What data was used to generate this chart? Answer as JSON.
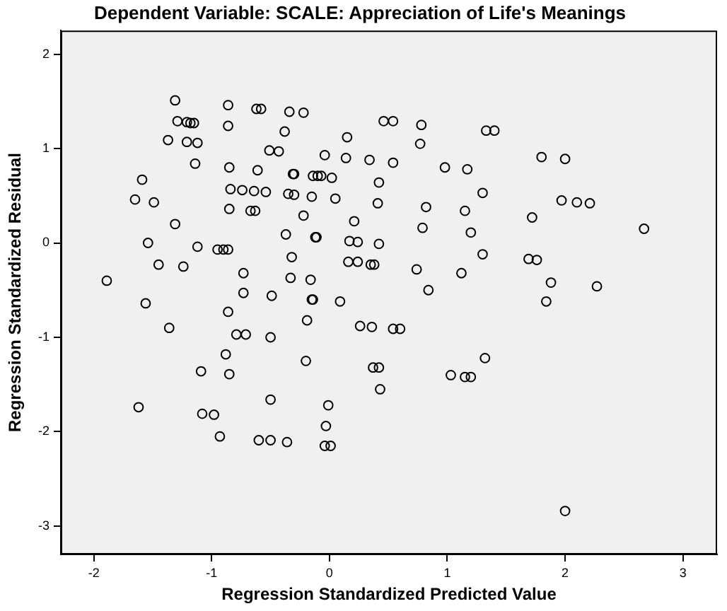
{
  "chart_data": {
    "type": "scatter",
    "title": "Dependent Variable: SCALE: Appreciation of Life's Meanings",
    "xlabel": "Regression Standardized Predicted Value",
    "ylabel": "Regression Standardized Residual",
    "marker": "circle",
    "xlim": [
      -2.28,
      3.29
    ],
    "ylim": [
      -3.3,
      2.25
    ],
    "xticks": [
      -2,
      -1,
      0,
      1,
      2,
      3
    ],
    "yticks": [
      -3,
      -2,
      -1,
      0,
      1,
      2
    ],
    "grid": false,
    "legend": false,
    "series": [
      {
        "color": "#000000",
        "x": [
          -1.31,
          -0.86,
          -0.62,
          -0.58,
          -0.34,
          -0.22,
          0.46,
          0.54,
          -1.29,
          -1.21,
          -1.18,
          -1.15,
          -0.86,
          -0.38,
          0.15,
          -1.37,
          -1.21,
          -1.12,
          -0.51,
          -0.43,
          -0.04,
          0.14,
          0.34,
          0.54,
          -1.14,
          -0.85,
          -0.61,
          -0.31,
          -0.3,
          -0.14,
          -0.1,
          -0.07,
          0.02,
          0.42,
          -1.59,
          -0.84,
          -0.74,
          -0.64,
          -0.54,
          -0.35,
          -0.3,
          -0.15,
          0.05,
          -1.65,
          -1.49,
          0.41,
          -0.85,
          -0.67,
          -0.63,
          -0.22,
          0.21,
          -1.31,
          -0.37,
          -0.12,
          -0.11,
          0.17,
          0.24,
          0.42,
          -1.54,
          -1.12,
          -0.95,
          -0.9,
          -0.86,
          -0.32,
          -1.45,
          -1.24,
          0.16,
          0.24,
          0.35,
          0.38,
          -1.89,
          -0.73,
          -0.33,
          -0.16,
          -0.73,
          -0.49,
          -0.15,
          -0.14,
          0.09,
          -1.56,
          -0.86,
          -1.36,
          -0.79,
          -0.71,
          -0.5,
          -0.19,
          0.26,
          0.36,
          0.54,
          0.6,
          -0.88,
          -1.09,
          -0.85,
          -0.2,
          0.37,
          0.42,
          0.43,
          -0.5,
          -0.01,
          -0.03,
          -0.04,
          0.01,
          -1.62,
          -1.08,
          -0.98,
          -0.93,
          -0.6,
          -0.5,
          -0.36,
          0.78,
          1.33,
          1.4,
          0.77,
          0.98,
          1.17,
          1.8,
          2.0,
          1.3,
          0.82,
          1.15,
          1.72,
          1.97,
          2.1,
          2.21,
          2.67,
          0.79,
          1.2,
          1.3,
          1.69,
          1.76,
          0.74,
          1.12,
          1.88,
          2.27,
          0.84,
          1.84,
          1.32,
          1.03,
          1.15,
          1.2,
          2.0
        ],
        "values": [
          1.51,
          1.46,
          1.42,
          1.42,
          1.39,
          1.38,
          1.29,
          1.29,
          1.29,
          1.28,
          1.27,
          1.27,
          1.24,
          1.18,
          1.12,
          1.09,
          1.07,
          1.06,
          0.98,
          0.97,
          0.93,
          0.9,
          0.88,
          0.85,
          0.84,
          0.8,
          0.77,
          0.73,
          0.73,
          0.71,
          0.71,
          0.71,
          0.69,
          0.64,
          0.67,
          0.57,
          0.56,
          0.55,
          0.54,
          0.52,
          0.51,
          0.49,
          0.47,
          0.46,
          0.43,
          0.42,
          0.36,
          0.34,
          0.34,
          0.29,
          0.23,
          0.2,
          0.09,
          0.06,
          0.06,
          0.02,
          0.01,
          -0.01,
          0.0,
          -0.04,
          -0.07,
          -0.07,
          -0.07,
          -0.15,
          -0.23,
          -0.25,
          -0.2,
          -0.2,
          -0.23,
          -0.23,
          -0.4,
          -0.32,
          -0.37,
          -0.39,
          -0.53,
          -0.56,
          -0.6,
          -0.6,
          -0.62,
          -0.64,
          -0.73,
          -0.9,
          -0.97,
          -0.97,
          -1.0,
          -0.82,
          -0.88,
          -0.89,
          -0.91,
          -0.91,
          -1.18,
          -1.36,
          -1.39,
          -1.25,
          -1.32,
          -1.32,
          -1.55,
          -1.66,
          -1.72,
          -1.94,
          -2.15,
          -2.15,
          -1.74,
          -1.81,
          -1.82,
          -2.05,
          -2.09,
          -2.09,
          -2.11,
          1.25,
          1.19,
          1.19,
          1.05,
          0.8,
          0.78,
          0.91,
          0.89,
          0.53,
          0.38,
          0.34,
          0.27,
          0.45,
          0.43,
          0.42,
          0.15,
          0.16,
          0.11,
          -0.12,
          -0.17,
          -0.18,
          -0.28,
          -0.32,
          -0.42,
          -0.46,
          -0.5,
          -0.62,
          -1.22,
          -1.4,
          -1.42,
          -1.42,
          -2.84
        ]
      }
    ]
  }
}
